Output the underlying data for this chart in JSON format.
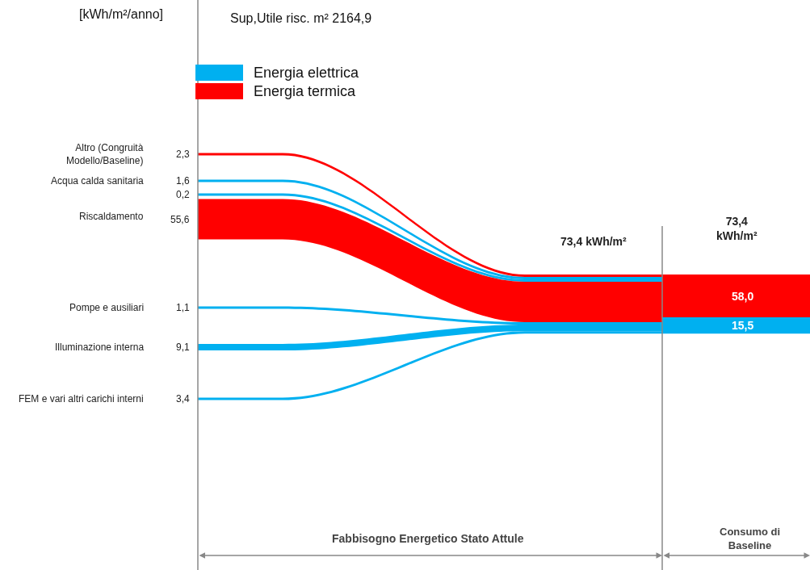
{
  "chart_data": {
    "type": "other",
    "title": "Sup,Utile risc. m² 2164,9",
    "ylabel": "[kWh/m²/anno]",
    "categories": [
      "Altro (Congruità\nModello/Baseline)",
      "Acqua calda sanitaria",
      "Riscaldamento",
      "Pompe e ausiliari",
      "Illuminazione interna",
      "FEM e vari altri carichi interni"
    ],
    "series": [
      {
        "name": "Energia elettrica",
        "color": "#00b0f0",
        "values": [
          null,
          1.6,
          0.2,
          1.1,
          9.1,
          3.4
        ],
        "value_labels": [
          null,
          "1,6",
          "0,2",
          "1,1",
          "9,1",
          "3,4"
        ]
      },
      {
        "name": "Energia termica",
        "color": "#ff0000",
        "values": [
          2.3,
          null,
          55.6,
          null,
          null,
          null
        ],
        "value_labels": [
          "2,3",
          null,
          "55,6",
          null,
          null,
          null
        ]
      }
    ],
    "totals": [
      "15,5",
      "58,0"
    ],
    "legend": "top left",
    "annotations": [
      "73,4 kWh/m²",
      "73,4\nkWh/m²",
      "Fabbisogno Energetico Stato Attule",
      "Consumo di\nBaseline"
    ]
  }
}
